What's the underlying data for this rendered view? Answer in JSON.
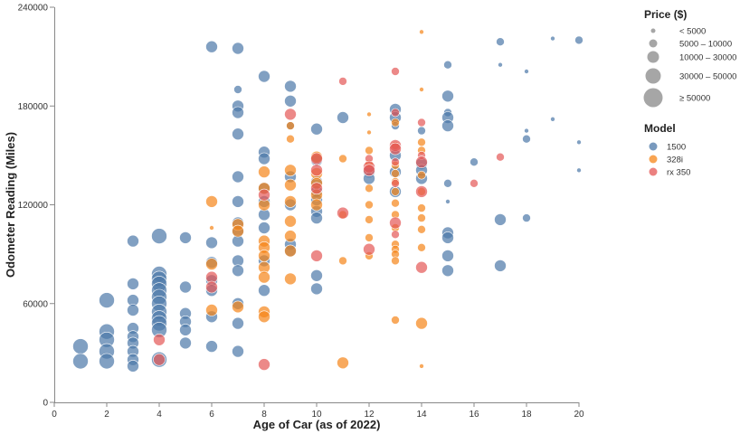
{
  "chart_data": {
    "type": "scatter",
    "title": "",
    "xlabel": "Age of Car (as of 2022)",
    "ylabel": "Odometer Reading (Miles)",
    "xlim": [
      0,
      20
    ],
    "ylim": [
      0,
      240000
    ],
    "x_ticks": [
      "0",
      "2",
      "4",
      "6",
      "8",
      "10",
      "12",
      "14",
      "16",
      "18",
      "20"
    ],
    "y_ticks": [
      "0",
      "60000",
      "120000",
      "180000",
      "240000"
    ],
    "grid": false,
    "legend_position": "right",
    "size_legend": {
      "title": "Price ($)",
      "labels": [
        "< 5000",
        "5000 – 10000",
        "10000 – 30000",
        "30000 – 50000",
        "≥ 50000"
      ]
    },
    "color_legend": {
      "title": "Model",
      "labels": [
        "1500",
        "328i",
        "rx 350"
      ]
    },
    "series": [
      {
        "name": "1500",
        "color": "#4c78a8",
        "points": [
          [
            1,
            34000,
            3
          ],
          [
            1,
            25000,
            3
          ],
          [
            2,
            62000,
            3
          ],
          [
            2,
            43000,
            3
          ],
          [
            2,
            38000,
            3
          ],
          [
            2,
            31000,
            3
          ],
          [
            2,
            25000,
            3
          ],
          [
            3,
            98000,
            2
          ],
          [
            3,
            72000,
            2
          ],
          [
            3,
            62000,
            2
          ],
          [
            3,
            56000,
            2
          ],
          [
            3,
            45000,
            2
          ],
          [
            3,
            40000,
            2
          ],
          [
            3,
            36000,
            2
          ],
          [
            3,
            31000,
            2
          ],
          [
            3,
            26000,
            2
          ],
          [
            3,
            22000,
            2
          ],
          [
            4,
            101000,
            3
          ],
          [
            4,
            78000,
            3
          ],
          [
            4,
            75000,
            3
          ],
          [
            4,
            72000,
            3
          ],
          [
            4,
            68000,
            3
          ],
          [
            4,
            64000,
            3
          ],
          [
            4,
            60000,
            3
          ],
          [
            4,
            55000,
            3
          ],
          [
            4,
            51000,
            3
          ],
          [
            4,
            48000,
            3
          ],
          [
            4,
            44000,
            3
          ],
          [
            4,
            26000,
            3
          ],
          [
            5,
            100000,
            2
          ],
          [
            5,
            70000,
            2
          ],
          [
            5,
            54000,
            2
          ],
          [
            5,
            49000,
            2
          ],
          [
            5,
            44000,
            2
          ],
          [
            5,
            36000,
            2
          ],
          [
            6,
            216000,
            2
          ],
          [
            6,
            97000,
            2
          ],
          [
            6,
            85000,
            2
          ],
          [
            6,
            74000,
            2
          ],
          [
            6,
            68000,
            2
          ],
          [
            6,
            52000,
            2
          ],
          [
            6,
            34000,
            2
          ],
          [
            7,
            215000,
            2
          ],
          [
            7,
            190000,
            1
          ],
          [
            7,
            180000,
            2
          ],
          [
            7,
            176000,
            2
          ],
          [
            7,
            163000,
            2
          ],
          [
            7,
            137000,
            2
          ],
          [
            7,
            122000,
            2
          ],
          [
            7,
            109000,
            2
          ],
          [
            7,
            104000,
            2
          ],
          [
            7,
            98000,
            2
          ],
          [
            7,
            86000,
            2
          ],
          [
            7,
            80000,
            2
          ],
          [
            7,
            60000,
            2
          ],
          [
            7,
            48000,
            2
          ],
          [
            7,
            31000,
            2
          ],
          [
            8,
            198000,
            2
          ],
          [
            8,
            152000,
            2
          ],
          [
            8,
            148000,
            2
          ],
          [
            8,
            130000,
            2
          ],
          [
            8,
            122000,
            2
          ],
          [
            8,
            114000,
            2
          ],
          [
            8,
            106000,
            2
          ],
          [
            8,
            86000,
            2
          ],
          [
            8,
            68000,
            2
          ],
          [
            9,
            192000,
            2
          ],
          [
            9,
            183000,
            2
          ],
          [
            9,
            168000,
            1
          ],
          [
            9,
            137000,
            2
          ],
          [
            9,
            120000,
            2
          ],
          [
            9,
            96000,
            2
          ],
          [
            9,
            92000,
            2
          ],
          [
            10,
            166000,
            2
          ],
          [
            10,
            147000,
            2
          ],
          [
            10,
            134000,
            2
          ],
          [
            10,
            128000,
            2
          ],
          [
            10,
            123000,
            2
          ],
          [
            10,
            116000,
            2
          ],
          [
            10,
            112000,
            2
          ],
          [
            10,
            77000,
            2
          ],
          [
            10,
            69000,
            2
          ],
          [
            11,
            173000,
            2
          ],
          [
            12,
            140000,
            2
          ],
          [
            12,
            136000,
            2
          ],
          [
            13,
            178000,
            2
          ],
          [
            13,
            173000,
            2
          ],
          [
            13,
            168000,
            1
          ],
          [
            13,
            150000,
            2
          ],
          [
            13,
            140000,
            2
          ],
          [
            13,
            128000,
            2
          ],
          [
            14,
            165000,
            1
          ],
          [
            14,
            145000,
            2
          ],
          [
            14,
            141000,
            2
          ],
          [
            14,
            136000,
            2
          ],
          [
            15,
            205000,
            1
          ],
          [
            15,
            186000,
            2
          ],
          [
            15,
            176000,
            1
          ],
          [
            15,
            173000,
            2
          ],
          [
            15,
            168000,
            2
          ],
          [
            15,
            133000,
            1
          ],
          [
            15,
            122000,
            0
          ],
          [
            15,
            103000,
            2
          ],
          [
            15,
            100000,
            2
          ],
          [
            15,
            89000,
            2
          ],
          [
            15,
            80000,
            2
          ],
          [
            16,
            146000,
            1
          ],
          [
            17,
            219000,
            1
          ],
          [
            17,
            205000,
            0
          ],
          [
            17,
            111000,
            2
          ],
          [
            17,
            83000,
            2
          ],
          [
            18,
            201000,
            0
          ],
          [
            18,
            160000,
            1
          ],
          [
            18,
            165000,
            0
          ],
          [
            18,
            112000,
            1
          ],
          [
            19,
            221000,
            0
          ],
          [
            19,
            172000,
            0
          ],
          [
            20,
            220000,
            1
          ],
          [
            20,
            158000,
            0
          ],
          [
            20,
            141000,
            0
          ]
        ]
      },
      {
        "name": "328i",
        "color": "#f58518",
        "points": [
          [
            6,
            122000,
            2
          ],
          [
            6,
            106000,
            0
          ],
          [
            6,
            84000,
            2
          ],
          [
            6,
            56000,
            2
          ],
          [
            7,
            108000,
            2
          ],
          [
            7,
            104000,
            2
          ],
          [
            7,
            58000,
            2
          ],
          [
            8,
            140000,
            2
          ],
          [
            8,
            130000,
            2
          ],
          [
            8,
            120000,
            2
          ],
          [
            8,
            98000,
            2
          ],
          [
            8,
            94000,
            2
          ],
          [
            8,
            89000,
            2
          ],
          [
            8,
            82000,
            2
          ],
          [
            8,
            76000,
            2
          ],
          [
            8,
            55000,
            2
          ],
          [
            8,
            52000,
            2
          ],
          [
            9,
            168000,
            1
          ],
          [
            9,
            160000,
            1
          ],
          [
            9,
            141000,
            2
          ],
          [
            9,
            132000,
            2
          ],
          [
            9,
            122000,
            2
          ],
          [
            9,
            110000,
            2
          ],
          [
            9,
            101000,
            2
          ],
          [
            9,
            92000,
            2
          ],
          [
            9,
            75000,
            2
          ],
          [
            10,
            149000,
            2
          ],
          [
            10,
            139000,
            2
          ],
          [
            10,
            133000,
            2
          ],
          [
            10,
            126000,
            2
          ],
          [
            10,
            120000,
            2
          ],
          [
            11,
            148000,
            1
          ],
          [
            11,
            114000,
            1
          ],
          [
            11,
            86000,
            1
          ],
          [
            11,
            24000,
            2
          ],
          [
            12,
            175000,
            0
          ],
          [
            12,
            164000,
            0
          ],
          [
            12,
            153000,
            1
          ],
          [
            12,
            145000,
            1
          ],
          [
            12,
            130000,
            1
          ],
          [
            12,
            120000,
            1
          ],
          [
            12,
            111000,
            1
          ],
          [
            12,
            100000,
            1
          ],
          [
            12,
            89000,
            1
          ],
          [
            13,
            170000,
            1
          ],
          [
            13,
            156000,
            1
          ],
          [
            13,
            144000,
            1
          ],
          [
            13,
            139000,
            1
          ],
          [
            13,
            134000,
            1
          ],
          [
            13,
            128000,
            1
          ],
          [
            13,
            121000,
            1
          ],
          [
            13,
            114000,
            1
          ],
          [
            13,
            106000,
            1
          ],
          [
            13,
            96000,
            1
          ],
          [
            13,
            93000,
            1
          ],
          [
            13,
            90000,
            1
          ],
          [
            13,
            86000,
            1
          ],
          [
            13,
            50000,
            1
          ],
          [
            14,
            225000,
            0
          ],
          [
            14,
            190000,
            0
          ],
          [
            14,
            158000,
            1
          ],
          [
            14,
            153000,
            1
          ],
          [
            14,
            138000,
            1
          ],
          [
            14,
            128000,
            1
          ],
          [
            14,
            118000,
            1
          ],
          [
            14,
            112000,
            1
          ],
          [
            14,
            105000,
            1
          ],
          [
            14,
            94000,
            1
          ],
          [
            14,
            48000,
            2
          ],
          [
            14,
            22000,
            0
          ]
        ]
      },
      {
        "name": "rx 350",
        "color": "#e45756",
        "points": [
          [
            4,
            38000,
            2
          ],
          [
            4,
            26000,
            2
          ],
          [
            6,
            76000,
            2
          ],
          [
            6,
            70000,
            2
          ],
          [
            8,
            126000,
            2
          ],
          [
            8,
            23000,
            2
          ],
          [
            9,
            175000,
            2
          ],
          [
            10,
            148000,
            2
          ],
          [
            10,
            141000,
            2
          ],
          [
            10,
            130000,
            2
          ],
          [
            10,
            89000,
            2
          ],
          [
            11,
            195000,
            1
          ],
          [
            11,
            115000,
            2
          ],
          [
            12,
            148000,
            1
          ],
          [
            12,
            143000,
            2
          ],
          [
            12,
            141000,
            2
          ],
          [
            12,
            93000,
            2
          ],
          [
            13,
            201000,
            1
          ],
          [
            13,
            176000,
            1
          ],
          [
            13,
            156000,
            2
          ],
          [
            13,
            154000,
            2
          ],
          [
            13,
            146000,
            1
          ],
          [
            13,
            133000,
            1
          ],
          [
            13,
            109000,
            2
          ],
          [
            13,
            102000,
            1
          ],
          [
            14,
            170000,
            1
          ],
          [
            14,
            150000,
            1
          ],
          [
            14,
            146000,
            2
          ],
          [
            14,
            128000,
            2
          ],
          [
            14,
            82000,
            2
          ],
          [
            16,
            133000,
            1
          ],
          [
            17,
            149000,
            1
          ]
        ]
      }
    ]
  }
}
